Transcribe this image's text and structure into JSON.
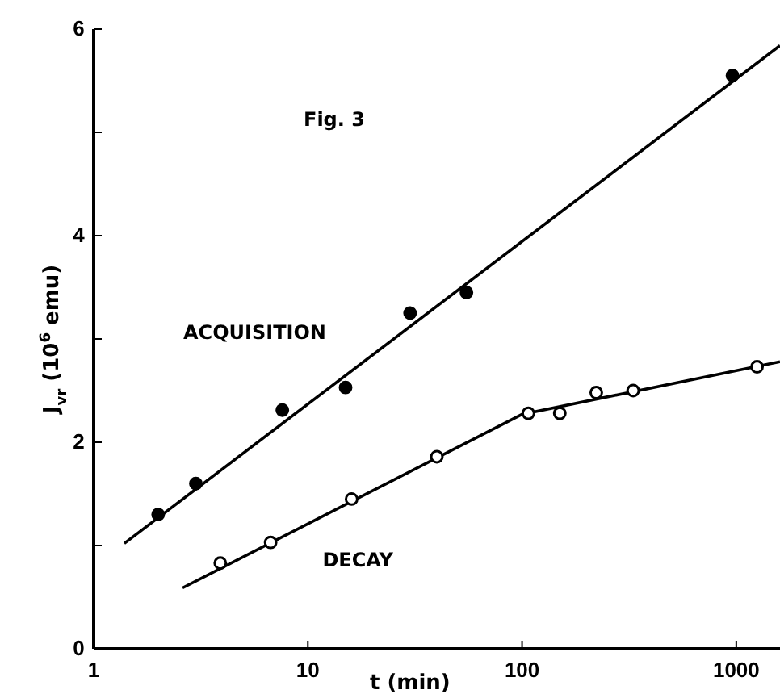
{
  "chart_data": {
    "type": "scatter",
    "xlabel": "t (min)",
    "ylabel": "J$_{vr}$ (10$^{6}$ emu)",
    "annotations": [
      "Fig. 3"
    ],
    "log": "x",
    "xlim": [
      1,
      1600
    ],
    "xticks": [
      1,
      10,
      100,
      1000
    ],
    "ylim": [
      0,
      6
    ],
    "yticks": [
      0,
      {
        "value": 1,
        "label": null
      },
      2,
      {
        "value": 3,
        "label": null
      },
      4,
      {
        "value": 5,
        "label": null
      },
      6
    ],
    "grid": false,
    "marker": "circle",
    "series": [
      {
        "name": "ACQUISITION",
        "color": "#000000",
        "x": [
          2,
          3,
          7.6,
          15,
          30,
          55,
          960
        ],
        "values": [
          1.3,
          1.6,
          2.31,
          2.53,
          3.25,
          3.45,
          5.55
        ]
      },
      {
        "type": "line",
        "marker": "none",
        "color": "#000000",
        "x": [
          1.39,
          1600
        ],
        "values": [
          1.02,
          5.84
        ]
      },
      {
        "name": "DECAY",
        "color": "#000000",
        "x": [
          3.9,
          6.7,
          16,
          40,
          107,
          150,
          222,
          330,
          1250
        ],
        "values": [
          0.83,
          1.03,
          1.45,
          1.86,
          2.28,
          2.28,
          2.48,
          2.5,
          2.73
        ]
      },
      {
        "type": "line",
        "marker": "none",
        "color": "#000000",
        "x": [
          2.6,
          100,
          1600
        ],
        "values": [
          0.59,
          2.27,
          2.78
        ]
      }
    ]
  }
}
